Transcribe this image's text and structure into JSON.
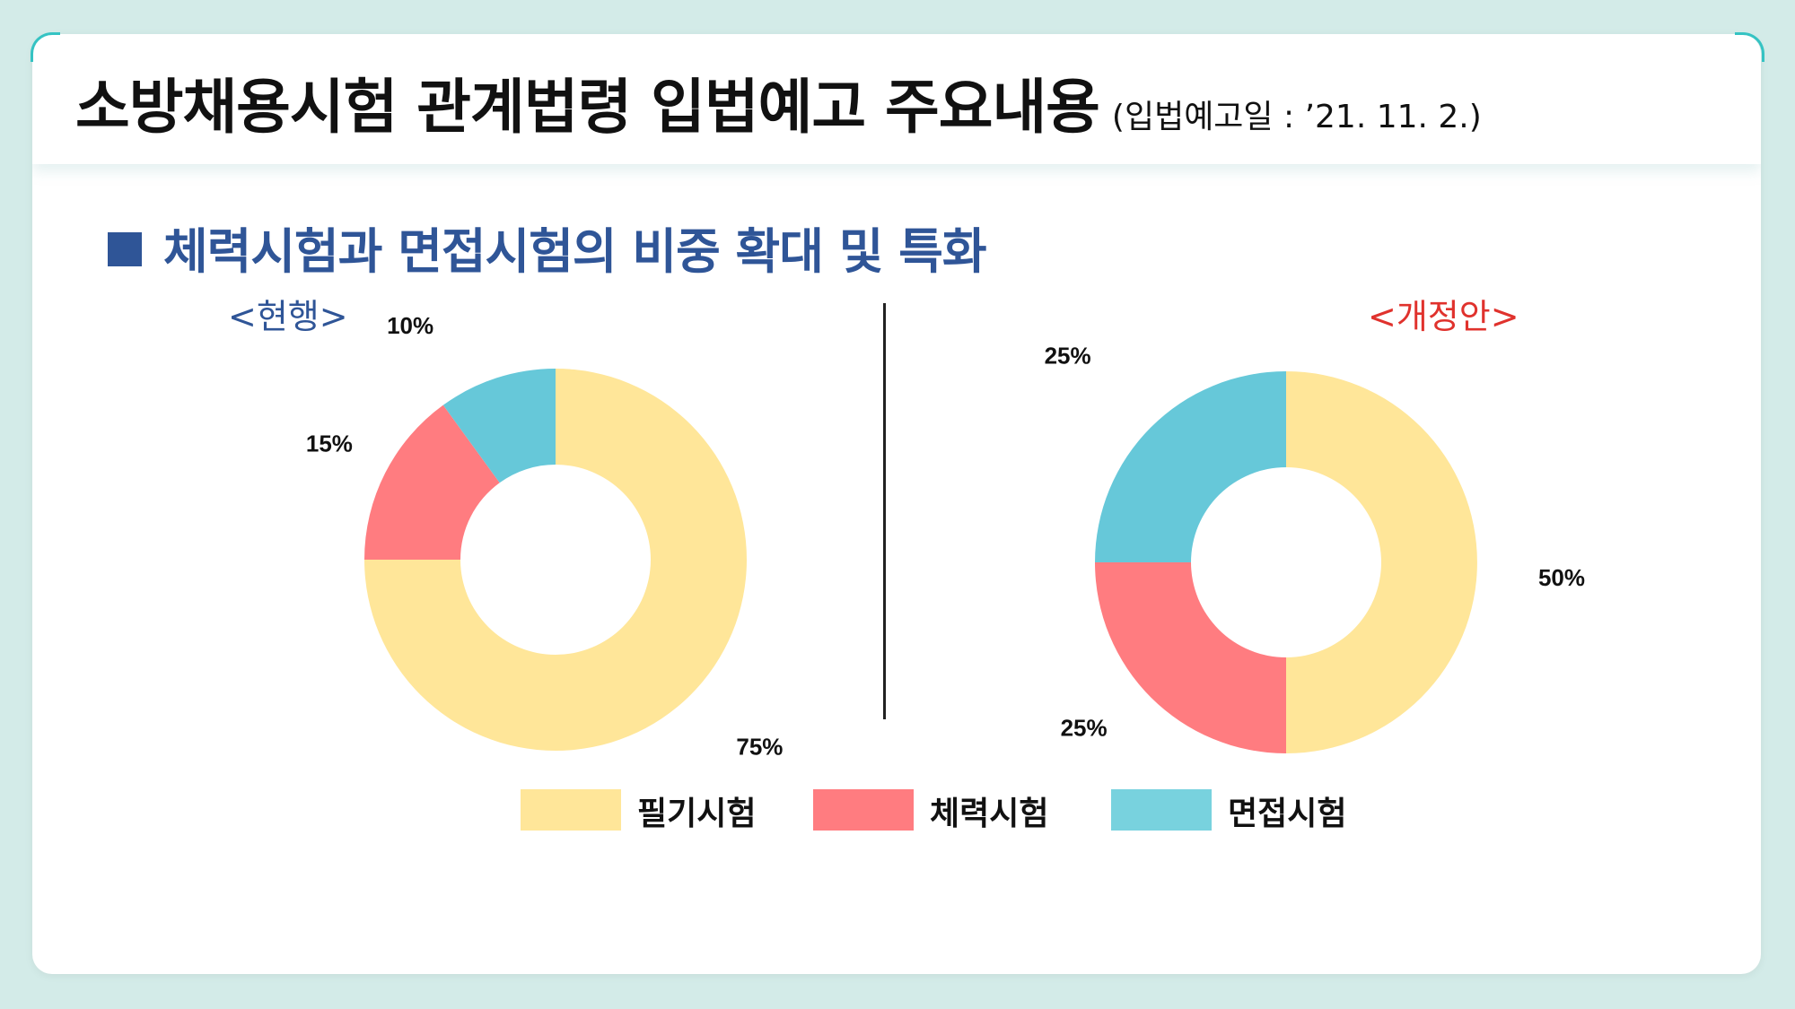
{
  "header": {
    "title": "소방채용시험 관계법령 입법예고 주요내용",
    "date_note": "(입법예고일 : ’21. 11. 2.)"
  },
  "subtitle": "체력시험과 면접시험의 비중 확대 및 특화",
  "colors": {
    "written": "#ffe699",
    "fitness": "#ff7c80",
    "interview": "#66c8d9",
    "accent_blue": "#2f5597",
    "accent_red": "#e0322d"
  },
  "chart_data": [
    {
      "type": "pie",
      "title": "<현행>",
      "categories": [
        "필기시험",
        "체력시험",
        "면접시험"
      ],
      "values": [
        75,
        15,
        10
      ],
      "value_labels": [
        "75%",
        "15%",
        "10%"
      ]
    },
    {
      "type": "pie",
      "title": "<개정안>",
      "categories": [
        "필기시험",
        "체력시험",
        "면접시험"
      ],
      "values": [
        50,
        25,
        25
      ],
      "value_labels": [
        "50%",
        "25%",
        "25%"
      ]
    }
  ],
  "legend": {
    "placement": "bottom",
    "items": [
      "필기시험",
      "체력시험",
      "면접시험"
    ]
  }
}
